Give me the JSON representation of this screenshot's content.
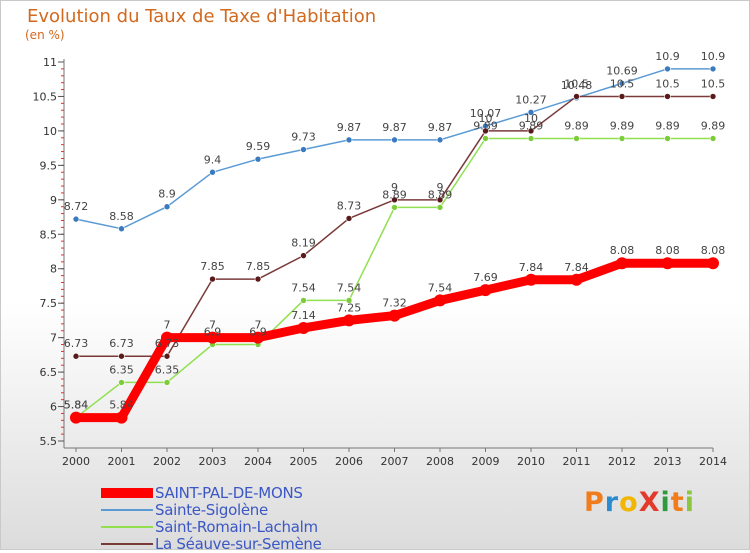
{
  "title": "Evolution du Taux de Taxe d'Habitation",
  "unit": "(en %)",
  "logo": {
    "text": "ProXiti",
    "letters": [
      {
        "ch": "P",
        "color": "#f07c1c"
      },
      {
        "ch": "r",
        "color": "#2a8ccf"
      },
      {
        "ch": "o",
        "color": "#f2b600"
      },
      {
        "ch": "X",
        "color": "#e23a2b"
      },
      {
        "ch": "i",
        "color": "#2e9a3e"
      },
      {
        "ch": "t",
        "color": "#f07c1c"
      },
      {
        "ch": "i",
        "color": "#8cc63f"
      }
    ]
  },
  "chart_data": {
    "type": "line",
    "x": [
      "2000",
      "2001",
      "2002",
      "2003",
      "2004",
      "2005",
      "2006",
      "2007",
      "2008",
      "2009",
      "2010",
      "2011",
      "2012",
      "2013",
      "2014"
    ],
    "ylim": [
      5.5,
      11
    ],
    "yticks": [
      "5.5",
      "6",
      "6.5",
      "7",
      "7.5",
      "8",
      "8.5",
      "9",
      "9.5",
      "10",
      "10.5",
      "11"
    ],
    "grid": false,
    "legend_position": "bottom-left",
    "series": [
      {
        "name": "SAINT-PAL-DE-MONS",
        "color": "#ff0000",
        "bold": true,
        "values": [
          5.84,
          5.84,
          7,
          7,
          7,
          7.14,
          7.25,
          7.32,
          7.54,
          7.69,
          7.84,
          7.84,
          8.08,
          8.08,
          8.08
        ],
        "labels": [
          "5.84",
          "5.84",
          "7",
          "7",
          "7",
          "7.14",
          "7.25",
          "7.32",
          "7.54",
          "7.69",
          "7.84",
          "7.84",
          "8.08",
          "8.08",
          "8.08"
        ]
      },
      {
        "name": "Sainte-Sigolène",
        "color": "#5b9bd5",
        "marker": "#3a7abf",
        "values": [
          8.72,
          8.58,
          8.9,
          9.4,
          9.59,
          9.73,
          9.87,
          9.87,
          9.87,
          10.07,
          10.27,
          10.48,
          10.69,
          10.9,
          10.9
        ],
        "labels": [
          "8.72",
          "8.58",
          "8.9",
          "9.4",
          "9.59",
          "9.73",
          "9.87",
          "9.87",
          "9.87",
          "10.07",
          "10.27",
          "10.48",
          "10.69",
          "10.9",
          "10.9"
        ]
      },
      {
        "name": "Saint-Romain-Lachalm",
        "color": "#90e050",
        "marker": "#7ccc3a",
        "values": [
          5.84,
          6.35,
          6.35,
          6.9,
          6.9,
          7.54,
          7.54,
          8.89,
          8.89,
          9.89,
          9.89,
          9.89,
          9.89,
          9.89,
          9.89
        ],
        "labels": [
          "5.84",
          "6.35",
          "6.35",
          "6.9",
          "6.9",
          "7.54",
          "7.54",
          "8.89",
          "8.89",
          "9.89",
          "9.89",
          "9.89",
          "9.89",
          "9.89",
          "9.89"
        ]
      },
      {
        "name": "La Séauve-sur-Semène",
        "color": "#7a3a3a",
        "marker": "#5a1a1a",
        "values": [
          6.73,
          6.73,
          6.73,
          7.85,
          7.85,
          8.19,
          8.73,
          9,
          9,
          10,
          10,
          10.5,
          10.5,
          10.5,
          10.5
        ],
        "labels": [
          "6.73",
          "6.73",
          "6.73",
          "7.85",
          "7.85",
          "8.19",
          "8.73",
          "9",
          "9",
          "10",
          "10",
          "10.5",
          "10.5",
          "10.5",
          "10.5"
        ]
      }
    ]
  }
}
